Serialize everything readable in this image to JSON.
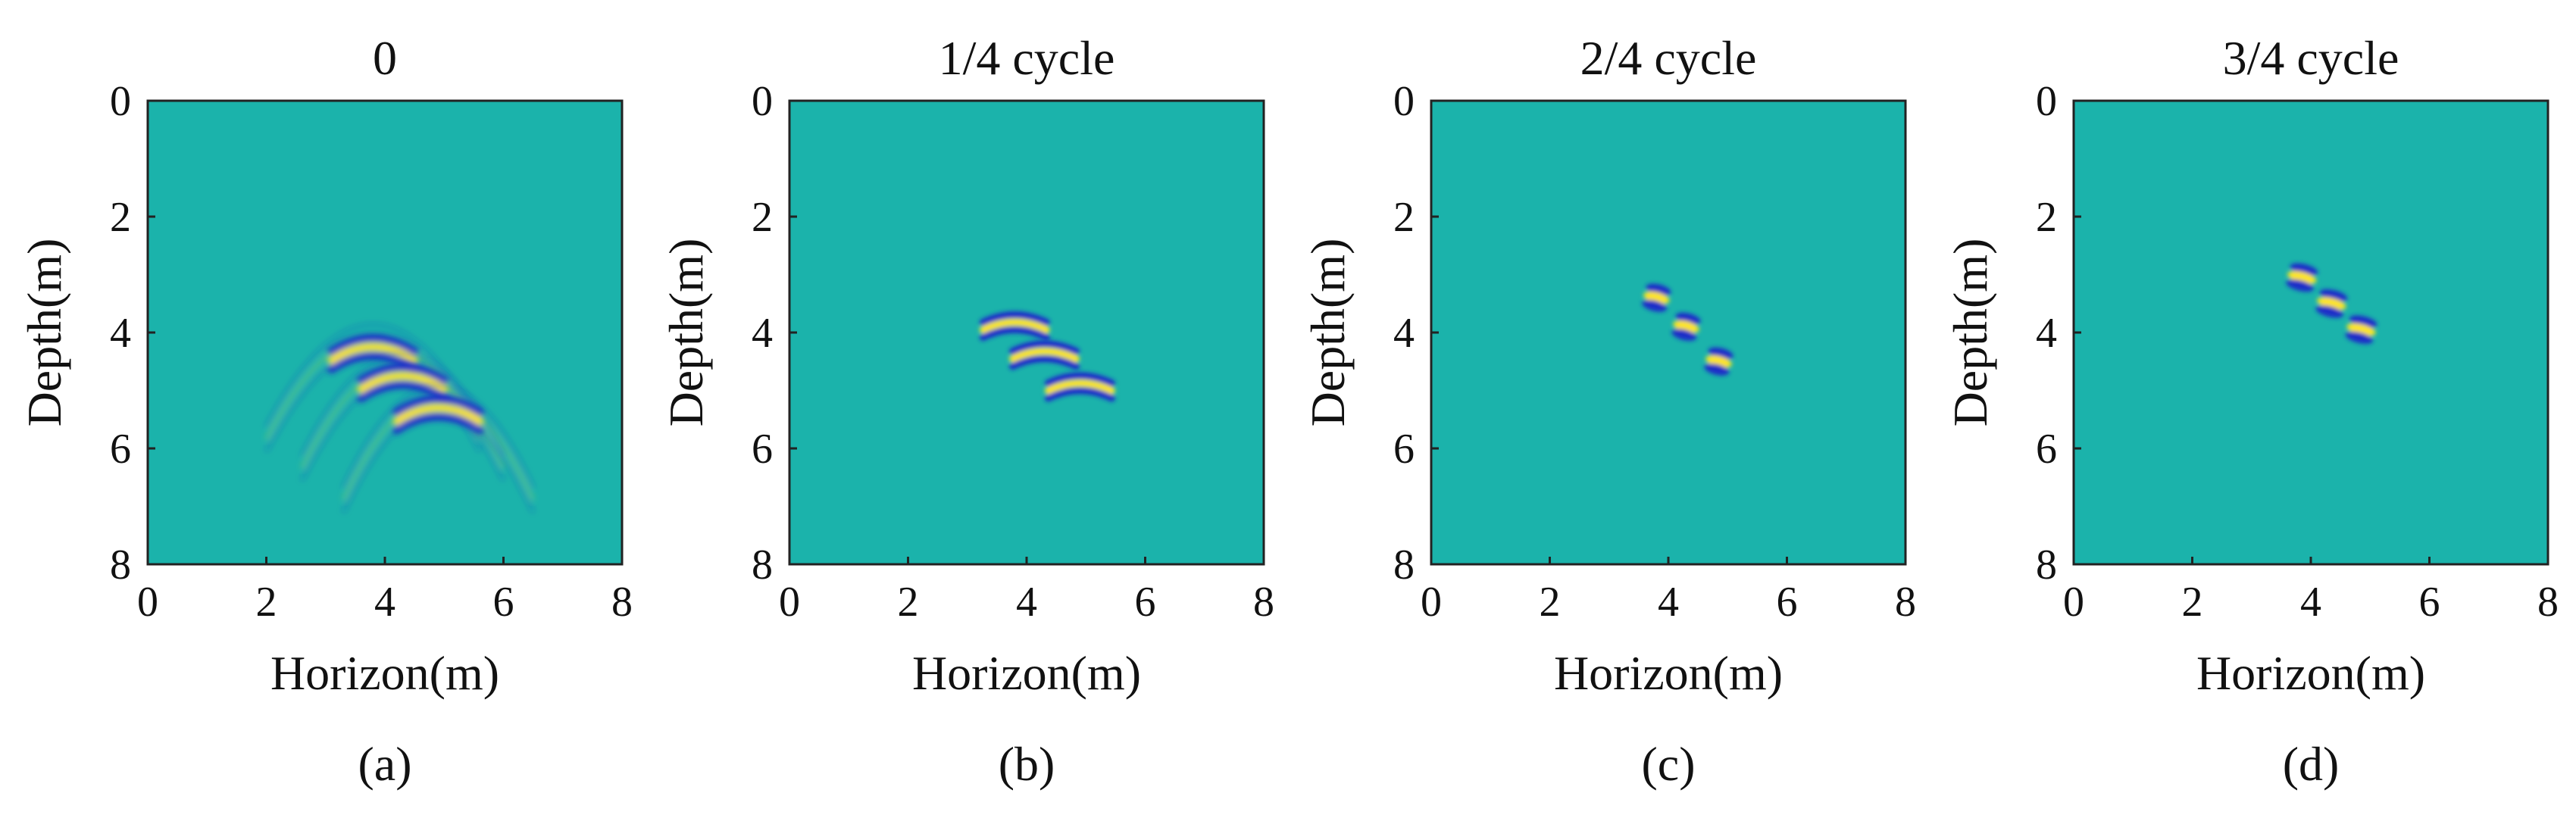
{
  "chart_data": [
    {
      "type": "heatmap",
      "title": "0",
      "caption": "(a)",
      "xlabel": "Horizon(m)",
      "ylabel": "Depth(m)",
      "xlim": [
        0,
        8
      ],
      "ylim": [
        0,
        8
      ],
      "y_reversed": true,
      "xticks": [
        "0",
        "2",
        "4",
        "6",
        "8"
      ],
      "yticks": [
        "0",
        "2",
        "4",
        "6",
        "8"
      ],
      "colors": {
        "background": "#1bb3ab",
        "positive": "#ffe61a",
        "negative": "#1a2fc8"
      },
      "wavelets": [
        {
          "x": 3.8,
          "y": 4.3,
          "amplitude": 1.0,
          "shape": "hyperbola",
          "spread": 1.8
        },
        {
          "x": 4.3,
          "y": 4.8,
          "amplitude": 1.0,
          "shape": "hyperbola",
          "spread": 1.7
        },
        {
          "x": 4.9,
          "y": 5.35,
          "amplitude": 1.0,
          "shape": "hyperbola",
          "spread": 1.6
        }
      ]
    },
    {
      "type": "heatmap",
      "title": "1/4 cycle",
      "caption": "(b)",
      "xlabel": "Horizon(m)",
      "ylabel": "Depth(m)",
      "xlim": [
        0,
        8
      ],
      "ylim": [
        0,
        8
      ],
      "y_reversed": true,
      "xticks": [
        "0",
        "2",
        "4",
        "6",
        "8"
      ],
      "yticks": [
        "0",
        "2",
        "4",
        "6",
        "8"
      ],
      "colors": {
        "background": "#1bb3ab",
        "positive": "#ffe61a",
        "negative": "#1a2fc8"
      },
      "wavelets": [
        {
          "x": 3.8,
          "y": 3.85,
          "amplitude": 1.0,
          "shape": "arc",
          "spread": 0.7
        },
        {
          "x": 4.3,
          "y": 4.35,
          "amplitude": 1.0,
          "shape": "arc",
          "spread": 0.7
        },
        {
          "x": 4.9,
          "y": 4.9,
          "amplitude": 1.0,
          "shape": "arc",
          "spread": 0.7
        }
      ]
    },
    {
      "type": "heatmap",
      "title": "2/4 cycle",
      "caption": "(c)",
      "xlabel": "Horizon(m)",
      "ylabel": "Depth(m)",
      "xlim": [
        0,
        8
      ],
      "ylim": [
        0,
        8
      ],
      "y_reversed": true,
      "xticks": [
        "0",
        "2",
        "4",
        "6",
        "8"
      ],
      "yticks": [
        "0",
        "2",
        "4",
        "6",
        "8"
      ],
      "colors": {
        "background": "#1bb3ab",
        "positive": "#ffe61a",
        "negative": "#1a2fc8"
      },
      "wavelets": [
        {
          "x": 3.8,
          "y": 3.4,
          "amplitude": 1.0,
          "shape": "spot",
          "spread": 0.45
        },
        {
          "x": 4.3,
          "y": 3.9,
          "amplitude": 1.0,
          "shape": "spot",
          "spread": 0.45
        },
        {
          "x": 4.85,
          "y": 4.5,
          "amplitude": 1.0,
          "shape": "spot",
          "spread": 0.45
        }
      ]
    },
    {
      "type": "heatmap",
      "title": "3/4 cycle",
      "caption": "(d)",
      "xlabel": "Horizon(m)",
      "ylabel": "Depth(m)",
      "xlim": [
        0,
        8
      ],
      "ylim": [
        0,
        8
      ],
      "y_reversed": true,
      "xticks": [
        "0",
        "2",
        "4",
        "6",
        "8"
      ],
      "yticks": [
        "0",
        "2",
        "4",
        "6",
        "8"
      ],
      "colors": {
        "background": "#1bb3ab",
        "positive": "#ffe61a",
        "negative": "#1a2fc8"
      },
      "wavelets": [
        {
          "x": 3.85,
          "y": 3.05,
          "amplitude": 1.0,
          "shape": "spot",
          "spread": 0.5
        },
        {
          "x": 4.35,
          "y": 3.5,
          "amplitude": 1.0,
          "shape": "spot",
          "spread": 0.5
        },
        {
          "x": 4.85,
          "y": 3.95,
          "amplitude": 1.0,
          "shape": "spot",
          "spread": 0.5
        }
      ]
    }
  ]
}
